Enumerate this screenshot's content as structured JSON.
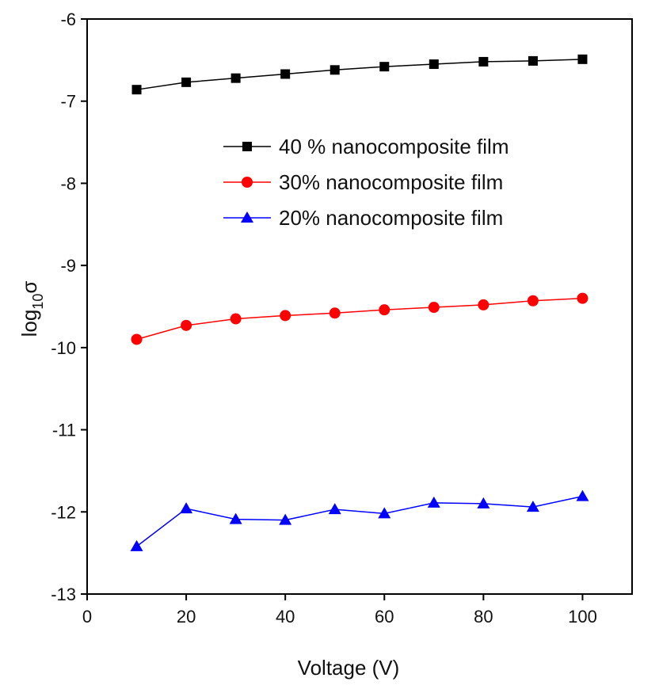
{
  "chart_data": {
    "type": "line",
    "xlabel": "Voltage (V)",
    "ylabel": [
      "log",
      "10",
      "σ"
    ],
    "x": [
      10,
      20,
      30,
      40,
      50,
      60,
      70,
      80,
      90,
      100
    ],
    "series": [
      {
        "name": "40 % nanocomposite film",
        "color": "#000000",
        "marker": "square",
        "values": [
          -6.86,
          -6.77,
          -6.72,
          -6.67,
          -6.62,
          -6.58,
          -6.55,
          -6.52,
          -6.51,
          -6.49
        ]
      },
      {
        "name": "30% nanocomposite film",
        "color": "#ff0000",
        "marker": "circle",
        "values": [
          -9.9,
          -9.73,
          -9.65,
          -9.61,
          -9.58,
          -9.54,
          -9.51,
          -9.48,
          -9.43,
          -9.4
        ]
      },
      {
        "name": "20% nanocomposite film",
        "color": "#0000ff",
        "marker": "triangle",
        "values": [
          -12.42,
          -11.96,
          -12.09,
          -12.1,
          -11.97,
          -12.02,
          -11.89,
          -11.9,
          -11.94,
          -11.81
        ]
      }
    ],
    "xlim": [
      0,
      110
    ],
    "xticks": [
      0,
      20,
      40,
      60,
      80,
      100
    ],
    "ylim": [
      -13,
      -6
    ],
    "yticks": [
      -13,
      -12,
      -11,
      -10,
      -9,
      -8,
      -7,
      -6
    ],
    "grid": false
  }
}
